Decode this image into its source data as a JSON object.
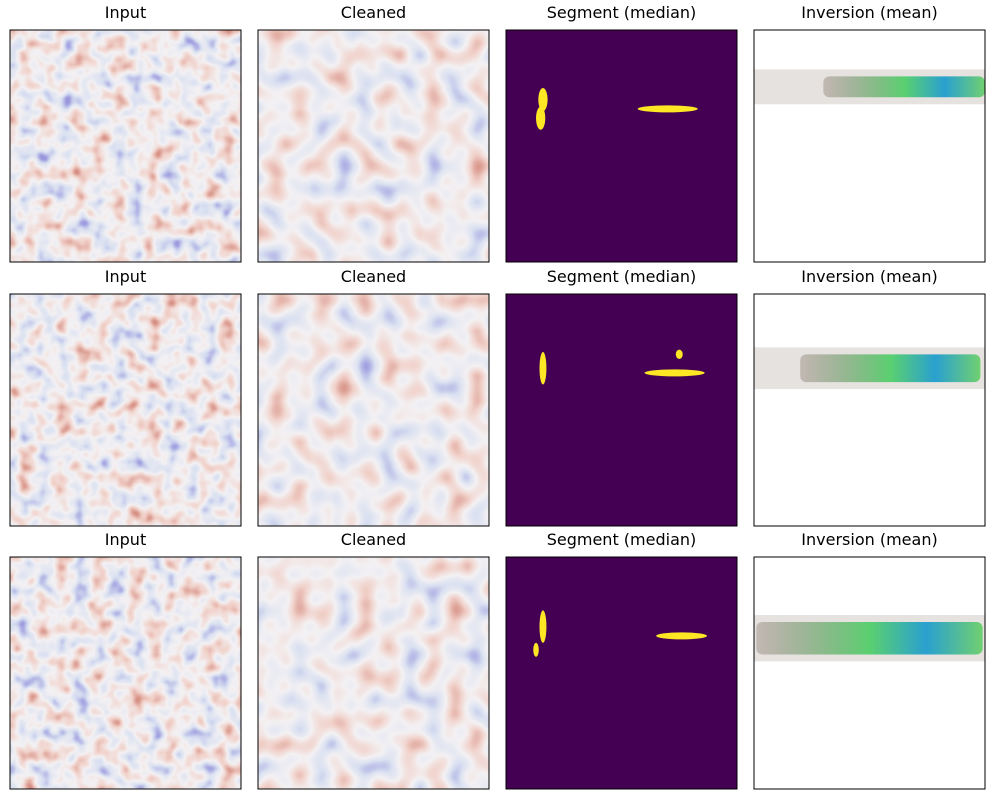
{
  "rows": [
    [
      "Input",
      "Cleaned",
      "Segment (median)",
      "Inversion (mean)"
    ],
    [
      "Input",
      "Cleaned",
      "Segment (median)",
      "Inversion (mean)"
    ],
    [
      "Input",
      "Cleaned",
      "Segment (median)",
      "Inversion (mean)"
    ]
  ]
}
